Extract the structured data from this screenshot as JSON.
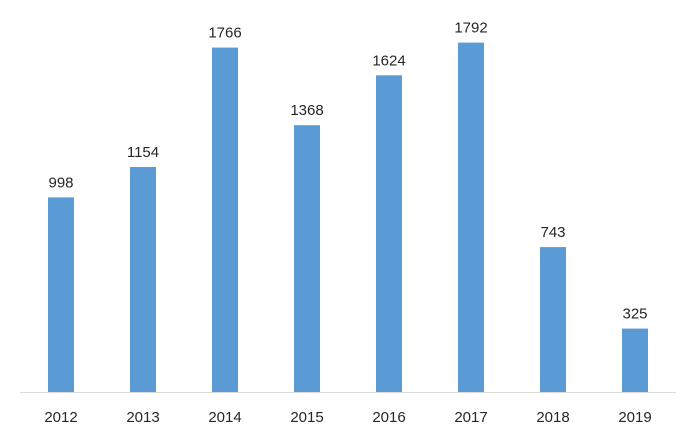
{
  "chart_data": {
    "type": "bar",
    "categories": [
      "2012",
      "2013",
      "2014",
      "2015",
      "2016",
      "2017",
      "2018",
      "2019"
    ],
    "values": [
      998,
      1154,
      1766,
      1368,
      1624,
      1792,
      743,
      325
    ],
    "title": "",
    "xlabel": "",
    "ylabel": "",
    "ylim": [
      0,
      2000
    ],
    "grid": false,
    "legend": "none",
    "bar_color": "#5b9bd5",
    "data_labels": true
  }
}
